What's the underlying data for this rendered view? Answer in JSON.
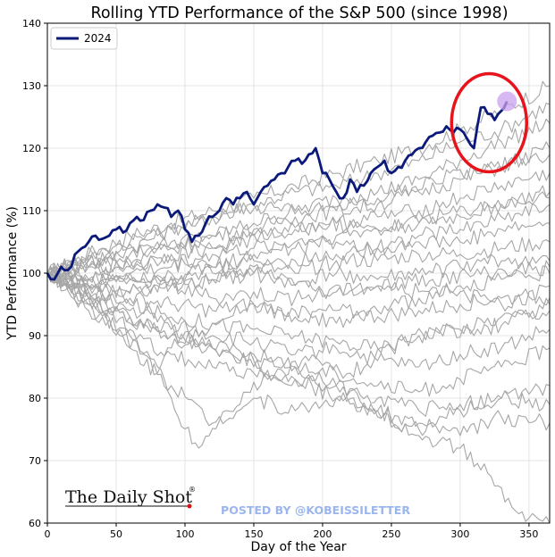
{
  "chart_data": {
    "type": "line",
    "title": "Rolling YTD Performance of the S&P 500 (since 1998)",
    "xlabel": "Day of the Year",
    "ylabel": "YTD Performance (%)",
    "xlim": [
      0,
      365
    ],
    "ylim": [
      60,
      140
    ],
    "xticks": [
      0,
      50,
      100,
      150,
      200,
      250,
      300,
      350
    ],
    "yticks": [
      60,
      70,
      80,
      90,
      100,
      110,
      120,
      130,
      140
    ],
    "grid": true,
    "legend": {
      "position": "top-left",
      "entries": [
        "2024"
      ]
    },
    "highlight_series": {
      "name": "2024",
      "color": "#0b1a7a",
      "x": [
        0,
        5,
        10,
        15,
        20,
        25,
        30,
        35,
        40,
        45,
        50,
        55,
        60,
        65,
        70,
        75,
        80,
        85,
        90,
        95,
        100,
        105,
        110,
        115,
        120,
        125,
        130,
        135,
        140,
        145,
        150,
        155,
        160,
        165,
        170,
        175,
        180,
        185,
        190,
        195,
        200,
        205,
        210,
        215,
        220,
        225,
        230,
        235,
        240,
        245,
        250,
        255,
        260,
        265,
        270,
        275,
        280,
        285,
        290,
        295,
        300,
        305,
        310,
        315,
        320,
        325,
        330,
        334
      ],
      "y": [
        100,
        99,
        101,
        100.5,
        103,
        104,
        105,
        106,
        105.5,
        106,
        107,
        106.5,
        108,
        109,
        108.5,
        110,
        111,
        110.5,
        109,
        110,
        107,
        105,
        106,
        108,
        109,
        110,
        112,
        111,
        112,
        113,
        111,
        113,
        114,
        115,
        116,
        117,
        118,
        117.5,
        119,
        120,
        116,
        115,
        113,
        112,
        115,
        113,
        114,
        116,
        117,
        118,
        116,
        117,
        118,
        119,
        120,
        121,
        122,
        122.5,
        123.5,
        122.5,
        123,
        121.5,
        120,
        126.5,
        125.5,
        124.5,
        126,
        127.5
      ]
    },
    "annotations": [
      {
        "type": "circle",
        "color": "#e8131b",
        "around": "2024 endpoint"
      },
      {
        "type": "dot",
        "color": "#c9a0ee",
        "around": "2024 endpoint"
      }
    ],
    "background_series_color": "#a6a6a6",
    "background_series": [
      {
        "x": [
          0,
          30,
          60,
          90,
          120,
          150,
          180,
          210,
          240,
          270,
          300,
          330,
          365
        ],
        "y": [
          100,
          103,
          106,
          108,
          110,
          112,
          114,
          116,
          118,
          120,
          123,
          126,
          130
        ]
      },
      {
        "x": [
          0,
          30,
          60,
          90,
          120,
          150,
          180,
          210,
          240,
          270,
          300,
          330,
          365
        ],
        "y": [
          100,
          101,
          104,
          107,
          109,
          111,
          113,
          114,
          116,
          118,
          121,
          123,
          127
        ]
      },
      {
        "x": [
          0,
          30,
          60,
          90,
          120,
          150,
          180,
          210,
          240,
          270,
          300,
          330,
          365
        ],
        "y": [
          100,
          102,
          103,
          105,
          106,
          108,
          110,
          112,
          113,
          115,
          118,
          121,
          124
        ]
      },
      {
        "x": [
          0,
          30,
          60,
          90,
          120,
          150,
          180,
          210,
          240,
          270,
          300,
          330,
          365
        ],
        "y": [
          100,
          99,
          102,
          104,
          106,
          107,
          109,
          110,
          111,
          113,
          115,
          117,
          120
        ]
      },
      {
        "x": [
          0,
          30,
          60,
          90,
          120,
          150,
          180,
          210,
          240,
          270,
          300,
          330,
          365
        ],
        "y": [
          100,
          101,
          101,
          103,
          104,
          106,
          107,
          108,
          109,
          110,
          112,
          114,
          116
        ]
      },
      {
        "x": [
          0,
          30,
          60,
          90,
          120,
          150,
          180,
          210,
          240,
          270,
          300,
          330,
          365
        ],
        "y": [
          100,
          98,
          100,
          101,
          103,
          104,
          105,
          106,
          107,
          108,
          109,
          111,
          113
        ]
      },
      {
        "x": [
          0,
          30,
          60,
          90,
          120,
          150,
          180,
          210,
          240,
          270,
          300,
          330,
          365
        ],
        "y": [
          100,
          102,
          101,
          102,
          101,
          103,
          104,
          105,
          104,
          106,
          107,
          109,
          111
        ]
      },
      {
        "x": [
          0,
          30,
          60,
          90,
          120,
          150,
          180,
          210,
          240,
          270,
          300,
          330,
          365
        ],
        "y": [
          100,
          99,
          100,
          99,
          101,
          102,
          102,
          103,
          104,
          105,
          105,
          107,
          108
        ]
      },
      {
        "x": [
          0,
          30,
          60,
          90,
          120,
          150,
          180,
          210,
          240,
          270,
          300,
          330,
          365
        ],
        "y": [
          100,
          101,
          99,
          100,
          100,
          101,
          100,
          102,
          102,
          103,
          103,
          104,
          105
        ]
      },
      {
        "x": [
          0,
          30,
          60,
          90,
          120,
          150,
          180,
          210,
          240,
          270,
          300,
          330,
          365
        ],
        "y": [
          100,
          98,
          99,
          98,
          99,
          100,
          98,
          100,
          99,
          100,
          101,
          102,
          102
        ]
      },
      {
        "x": [
          0,
          30,
          60,
          90,
          120,
          150,
          180,
          210,
          240,
          270,
          300,
          330,
          365
        ],
        "y": [
          100,
          99,
          97,
          98,
          96,
          97,
          96,
          97,
          98,
          97,
          98,
          99,
          100
        ]
      },
      {
        "x": [
          0,
          30,
          60,
          90,
          120,
          150,
          180,
          210,
          240,
          270,
          300,
          330,
          365
        ],
        "y": [
          100,
          97,
          96,
          95,
          94,
          95,
          93,
          94,
          93,
          94,
          95,
          96,
          96
        ]
      },
      {
        "x": [
          0,
          30,
          60,
          90,
          120,
          150,
          180,
          210,
          240,
          270,
          300,
          330,
          365
        ],
        "y": [
          100,
          96,
          95,
          93,
          92,
          91,
          90,
          89,
          88,
          90,
          91,
          93,
          94
        ]
      },
      {
        "x": [
          0,
          30,
          60,
          90,
          120,
          150,
          180,
          210,
          240,
          270,
          300,
          330,
          365
        ],
        "y": [
          100,
          98,
          94,
          92,
          90,
          89,
          87,
          88,
          86,
          85,
          87,
          88,
          91
        ]
      },
      {
        "x": [
          0,
          30,
          60,
          90,
          120,
          150,
          180,
          210,
          240,
          270,
          300,
          330,
          365
        ],
        "y": [
          100,
          95,
          93,
          90,
          88,
          86,
          85,
          84,
          82,
          81,
          83,
          85,
          88
        ]
      },
      {
        "x": [
          0,
          30,
          60,
          90,
          120,
          150,
          180,
          210,
          240,
          270,
          300,
          330,
          365
        ],
        "y": [
          100,
          94,
          90,
          87,
          85,
          84,
          83,
          82,
          80,
          78,
          79,
          80,
          82
        ]
      },
      {
        "x": [
          0,
          30,
          60,
          90,
          120,
          150,
          180,
          210,
          240,
          270,
          300,
          330,
          365
        ],
        "y": [
          100,
          95,
          88,
          82,
          76,
          80,
          78,
          80,
          77,
          75,
          78,
          80,
          79
        ]
      },
      {
        "x": [
          0,
          30,
          55,
          70,
          80,
          90,
          120,
          150,
          180,
          210,
          240,
          270,
          300,
          330,
          365
        ],
        "y": [
          100,
          96,
          90,
          87,
          84,
          88,
          92,
          95,
          94,
          92,
          94,
          96,
          97,
          95,
          98
        ]
      },
      {
        "x": [
          0,
          30,
          60,
          90,
          120,
          150,
          180,
          210,
          240,
          270,
          300,
          330,
          365
        ],
        "y": [
          100,
          96,
          93,
          91,
          88,
          85,
          83,
          80,
          78,
          76,
          74,
          77,
          76
        ]
      },
      {
        "x": [
          0,
          30,
          60,
          90,
          120,
          150,
          180,
          210,
          240,
          270,
          300,
          320,
          340,
          365
        ],
        "y": [
          100,
          97,
          92,
          90,
          88,
          87,
          85,
          82,
          78,
          74,
          72,
          68,
          62,
          60
        ]
      },
      {
        "x": [
          0,
          30,
          60,
          80,
          95,
          110,
          130,
          160,
          190,
          220,
          250,
          280,
          310,
          340,
          365
        ],
        "y": [
          100,
          96,
          91,
          85,
          77,
          72,
          78,
          83,
          86,
          84,
          88,
          91,
          90,
          93,
          95
        ]
      },
      {
        "x": [
          0,
          40,
          80,
          120,
          160,
          200,
          240,
          280,
          320,
          365
        ],
        "y": [
          100,
          102,
          105,
          104,
          106,
          108,
          107,
          109,
          111,
          112
        ]
      },
      {
        "x": [
          0,
          40,
          80,
          120,
          160,
          200,
          240,
          280,
          320,
          365
        ],
        "y": [
          100,
          97,
          98,
          99,
          100,
          97,
          98,
          99,
          100,
          101
        ]
      },
      {
        "x": [
          0,
          40,
          80,
          120,
          160,
          200,
          240,
          280,
          320,
          365
        ],
        "y": [
          100,
          104,
          106,
          109,
          111,
          110,
          112,
          115,
          117,
          119
        ]
      }
    ]
  },
  "watermark": {
    "brand": "The Daily Shot",
    "brand_mark": "®",
    "credit": "POSTED BY @KOBEISSILETTER"
  }
}
